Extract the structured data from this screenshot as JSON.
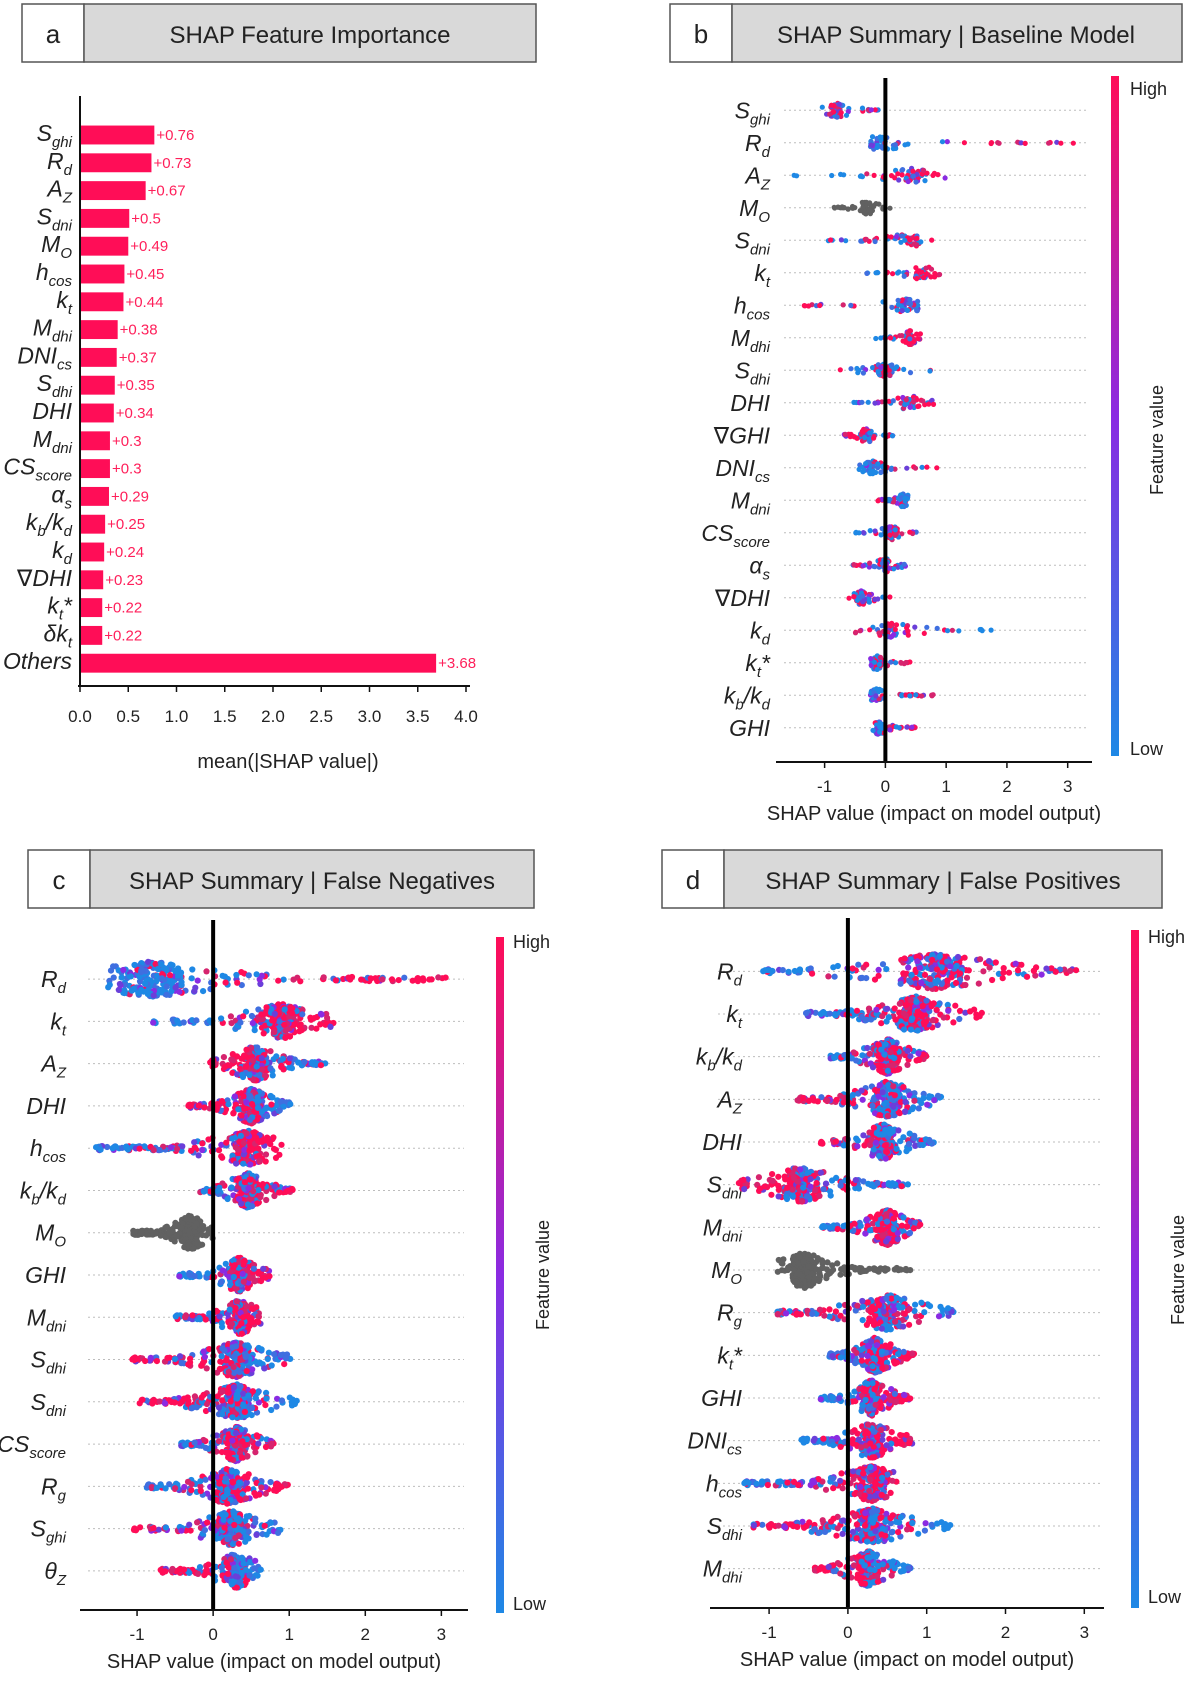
{
  "colors": {
    "bar": "#ff0d57",
    "high": "#ff0d57",
    "low": "#1e88e5",
    "mid": "#8a2be2",
    "missing": "#616161",
    "panel_header_bg": "#d9d9d9"
  },
  "panels": {
    "a": {
      "letter": "a",
      "title": "SHAP Feature Importance"
    },
    "b": {
      "letter": "b",
      "title": "SHAP Summary | Baseline Model"
    },
    "c": {
      "letter": "c",
      "title": "SHAP Summary | False Negatives"
    },
    "d": {
      "letter": "d",
      "title": "SHAP Summary | False Positives"
    }
  },
  "colorbar": {
    "high": "High",
    "low": "Low",
    "label": "Feature value"
  },
  "chart_data": [
    {
      "id": "a",
      "type": "bar",
      "orientation": "horizontal",
      "title": "SHAP Feature Importance",
      "xlabel": "mean(|SHAP value|)",
      "xlim": [
        0.0,
        4.0
      ],
      "xticks": [
        "0.0",
        "0.5",
        "1.0",
        "1.5",
        "2.0",
        "2.5",
        "3.0",
        "3.5",
        "4.0"
      ],
      "categories": [
        {
          "base": "S",
          "sub": "ghi"
        },
        {
          "base": "R",
          "sub": "d"
        },
        {
          "base": "A",
          "sub": "Z"
        },
        {
          "base": "S",
          "sub": "dni"
        },
        {
          "base": "M",
          "sub": "O"
        },
        {
          "base": "h",
          "sub": "cos"
        },
        {
          "base": "k",
          "sub": "t"
        },
        {
          "base": "M",
          "sub": "dhi"
        },
        {
          "base": "DNI",
          "sub": "cs"
        },
        {
          "base": "S",
          "sub": "dhi"
        },
        {
          "base": "DHI",
          "sub": ""
        },
        {
          "base": "M",
          "sub": "dni"
        },
        {
          "base": "CS",
          "sub": "score"
        },
        {
          "base": "α",
          "sub": "s"
        },
        {
          "base": "k",
          "sub": "b",
          "rest": "/k",
          "sub2": "d"
        },
        {
          "base": "k",
          "sub": "d"
        },
        {
          "base": "∇DHI",
          "sub": ""
        },
        {
          "base": "k",
          "sub": "t",
          "rest": "*"
        },
        {
          "base": "δk",
          "sub": "t"
        },
        {
          "base": "Others",
          "sub": ""
        }
      ],
      "values": [
        0.76,
        0.73,
        0.67,
        0.5,
        0.49,
        0.45,
        0.44,
        0.38,
        0.37,
        0.35,
        0.34,
        0.3,
        0.3,
        0.29,
        0.25,
        0.24,
        0.23,
        0.22,
        0.22,
        3.68
      ],
      "value_labels": [
        "+0.76",
        "+0.73",
        "+0.67",
        "+0.5",
        "+0.49",
        "+0.45",
        "+0.44",
        "+0.38",
        "+0.37",
        "+0.35",
        "+0.34",
        "+0.3",
        "+0.3",
        "+0.29",
        "+0.25",
        "+0.24",
        "+0.23",
        "+0.22",
        "+0.22",
        "+3.68"
      ]
    },
    {
      "id": "b",
      "type": "scatter",
      "subtype": "beeswarm",
      "title": "SHAP Summary | Baseline Model",
      "xlabel": "SHAP value (impact on model output)",
      "xlim": [
        -1.8,
        3.4
      ],
      "xticks": [
        -1,
        0,
        1,
        2,
        3
      ],
      "xtick_labels": [
        "-1",
        "0",
        "1",
        "2",
        "3"
      ],
      "density": "sparse",
      "features": [
        {
          "base": "S",
          "sub": "ghi",
          "range": [
            -1.2,
            0.15
          ],
          "center": -0.8,
          "ext": [
            -1.2,
            0.15
          ],
          "low": "right",
          "high": "left"
        },
        {
          "base": "R",
          "sub": "d",
          "range": [
            -0.25,
            3.1
          ],
          "center": -0.05,
          "ext": [
            -0.25,
            3.1
          ],
          "low": "left",
          "high": "right"
        },
        {
          "base": "A",
          "sub": "Z",
          "range": [
            -1.65,
            1.1
          ],
          "center": 0.45,
          "ext": [
            -1.65,
            1.1
          ],
          "low": "mixed",
          "high": "right"
        },
        {
          "base": "M",
          "sub": "O",
          "range": [
            -0.85,
            0.1
          ],
          "center": -0.3,
          "ext": [
            -0.85,
            0.1
          ],
          "missing": true
        },
        {
          "base": "S",
          "sub": "dni",
          "range": [
            -0.95,
            0.9
          ],
          "center": 0.4,
          "ext": [
            -0.95,
            0.9
          ],
          "low": "mixed",
          "high": "right"
        },
        {
          "base": "k",
          "sub": "t",
          "range": [
            -0.4,
            0.9
          ],
          "center": 0.6,
          "ext": [
            -0.4,
            0.9
          ],
          "low": "left",
          "high": "right"
        },
        {
          "base": "h",
          "sub": "cos",
          "range": [
            -1.35,
            0.55
          ],
          "center": 0.35,
          "ext": [
            -1.35,
            0.55
          ],
          "low": "right",
          "high": "left"
        },
        {
          "base": "M",
          "sub": "dhi",
          "range": [
            -0.25,
            0.6
          ],
          "center": 0.4,
          "ext": [
            -0.25,
            0.6
          ],
          "low": "left",
          "high": "right"
        },
        {
          "base": "S",
          "sub": "dhi",
          "range": [
            -0.75,
            0.85
          ],
          "center": 0.0,
          "ext": [
            -0.75,
            0.85
          ],
          "low": "mixed",
          "high": "mixed"
        },
        {
          "base": "DHI",
          "sub": "",
          "range": [
            -0.55,
            0.8
          ],
          "center": 0.4,
          "ext": [
            -0.55,
            0.8
          ],
          "low": "left",
          "high": "right"
        },
        {
          "base": "∇GHI",
          "sub": "",
          "range": [
            -0.7,
            0.2
          ],
          "center": -0.3,
          "ext": [
            -0.7,
            0.2
          ],
          "low": "mixed",
          "high": "mixed"
        },
        {
          "base": "DNI",
          "sub": "cs",
          "range": [
            -0.45,
            0.85
          ],
          "center": -0.2,
          "ext": [
            -0.45,
            0.85
          ],
          "low": "left",
          "high": "right"
        },
        {
          "base": "M",
          "sub": "dni",
          "range": [
            -0.15,
            0.4
          ],
          "center": 0.3,
          "ext": [
            -0.15,
            0.4
          ],
          "low": "right",
          "high": "left"
        },
        {
          "base": "CS",
          "sub": "score",
          "range": [
            -0.5,
            0.65
          ],
          "center": 0.1,
          "ext": [
            -0.5,
            0.65
          ],
          "low": "mixed",
          "high": "right"
        },
        {
          "base": "α",
          "sub": "s",
          "range": [
            -0.55,
            0.35
          ],
          "center": 0.0,
          "ext": [
            -0.55,
            0.35
          ],
          "low": "mixed",
          "high": "left"
        },
        {
          "base": "∇DHI",
          "sub": "",
          "range": [
            -0.7,
            0.2
          ],
          "center": -0.4,
          "ext": [
            -0.7,
            0.2
          ],
          "low": "mixed",
          "high": "mixed"
        },
        {
          "base": "k",
          "sub": "d",
          "range": [
            -0.55,
            1.75
          ],
          "center": 0.1,
          "ext": [
            -0.55,
            1.75
          ],
          "low": "right",
          "high": "mixed"
        },
        {
          "base": "k",
          "sub": "t",
          "rest": "*",
          "range": [
            -0.3,
            0.55
          ],
          "center": -0.15,
          "ext": [
            -0.3,
            0.55
          ],
          "low": "mixed",
          "high": "right"
        },
        {
          "base": "k",
          "sub": "b",
          "rest": "/k",
          "sub2": "d",
          "range": [
            -0.25,
            0.8
          ],
          "center": -0.15,
          "ext": [
            -0.25,
            0.8
          ],
          "low": "left",
          "high": "right"
        },
        {
          "base": "GHI",
          "sub": "",
          "range": [
            -0.25,
            0.5
          ],
          "center": -0.1,
          "ext": [
            -0.25,
            0.5
          ],
          "low": "left",
          "high": "right"
        }
      ]
    },
    {
      "id": "c",
      "type": "scatter",
      "subtype": "beeswarm",
      "title": "SHAP Summary | False Negatives",
      "xlabel": "SHAP value (impact on model output)",
      "xlim": [
        -1.75,
        3.35
      ],
      "xticks": [
        -1,
        0,
        1,
        2,
        3
      ],
      "xtick_labels": [
        "-1",
        "0",
        "1",
        "2",
        "3"
      ],
      "density": "dense",
      "features": [
        {
          "base": "R",
          "sub": "d",
          "range": [
            -1.45,
            3.1
          ],
          "center": -0.8,
          "ext": [
            -1.45,
            3.1
          ],
          "low": "left",
          "high": "right"
        },
        {
          "base": "k",
          "sub": "t",
          "range": [
            -0.8,
            1.6
          ],
          "center": 0.9,
          "ext": [
            -0.8,
            1.6
          ],
          "low": "left",
          "high": "right"
        },
        {
          "base": "A",
          "sub": "Z",
          "range": [
            -0.05,
            1.5
          ],
          "center": 0.55,
          "ext": [
            -0.05,
            1.5
          ],
          "low": "right",
          "high": "left"
        },
        {
          "base": "DHI",
          "sub": "",
          "range": [
            -0.35,
            1.05
          ],
          "center": 0.5,
          "ext": [
            -0.35,
            1.05
          ],
          "low": "right",
          "high": "left"
        },
        {
          "base": "h",
          "sub": "cos",
          "range": [
            -1.6,
            0.9
          ],
          "center": 0.45,
          "ext": [
            -1.6,
            0.9
          ],
          "low": "left",
          "high": "right"
        },
        {
          "base": "k",
          "sub": "b",
          "rest": "/k",
          "sub2": "d",
          "range": [
            -0.2,
            1.05
          ],
          "center": 0.45,
          "ext": [
            -0.2,
            1.05
          ],
          "low": "left",
          "high": "mixed"
        },
        {
          "base": "M",
          "sub": "O",
          "range": [
            -1.05,
            0.0
          ],
          "center": -0.3,
          "ext": [
            -1.05,
            0.0
          ],
          "missing": true
        },
        {
          "base": "GHI",
          "sub": "",
          "range": [
            -0.45,
            0.75
          ],
          "center": 0.35,
          "ext": [
            -0.45,
            0.75
          ],
          "low": "left",
          "high": "right"
        },
        {
          "base": "M",
          "sub": "dni",
          "range": [
            -0.5,
            0.65
          ],
          "center": 0.35,
          "ext": [
            -0.5,
            0.65
          ],
          "low": "left",
          "high": "mixed"
        },
        {
          "base": "S",
          "sub": "dhi",
          "range": [
            -1.1,
            1.05
          ],
          "center": 0.3,
          "ext": [
            -1.1,
            1.05
          ],
          "low": "right",
          "high": "left"
        },
        {
          "base": "S",
          "sub": "dni",
          "range": [
            -1.05,
            1.1
          ],
          "center": 0.3,
          "ext": [
            -1.05,
            1.1
          ],
          "low": "right",
          "high": "left"
        },
        {
          "base": "CS",
          "sub": "score",
          "range": [
            -0.45,
            0.8
          ],
          "center": 0.3,
          "ext": [
            -0.45,
            0.8
          ],
          "low": "left",
          "high": "right"
        },
        {
          "base": "R",
          "sub": "g",
          "range": [
            -0.9,
            1.0
          ],
          "center": 0.2,
          "ext": [
            -0.9,
            1.0
          ],
          "low": "left",
          "high": "mixed"
        },
        {
          "base": "S",
          "sub": "ghi",
          "range": [
            -1.05,
            0.9
          ],
          "center": 0.25,
          "ext": [
            -1.05,
            0.9
          ],
          "low": "right",
          "high": "left"
        },
        {
          "base": "θ",
          "sub": "Z",
          "range": [
            -0.7,
            0.65
          ],
          "center": 0.3,
          "ext": [
            -0.7,
            0.65
          ],
          "low": "right",
          "high": "left"
        }
      ]
    },
    {
      "id": "d",
      "type": "scatter",
      "subtype": "beeswarm",
      "title": "SHAP Summary | False Positives",
      "xlabel": "SHAP value (impact on model output)",
      "xlim": [
        -1.75,
        3.25
      ],
      "xticks": [
        -1,
        0,
        1,
        2,
        3
      ],
      "xtick_labels": [
        "-1",
        "0",
        "1",
        "2",
        "3"
      ],
      "density": "dense",
      "features": [
        {
          "base": "R",
          "sub": "d",
          "range": [
            -1.15,
            3.0
          ],
          "center": 1.1,
          "ext": [
            -1.15,
            3.0
          ],
          "low": "left",
          "high": "right"
        },
        {
          "base": "k",
          "sub": "t",
          "range": [
            -0.6,
            1.7
          ],
          "center": 0.85,
          "ext": [
            -0.6,
            1.7
          ],
          "low": "left",
          "high": "right"
        },
        {
          "base": "k",
          "sub": "b",
          "rest": "/k",
          "sub2": "d",
          "range": [
            -0.25,
            1.0
          ],
          "center": 0.5,
          "ext": [
            -0.25,
            1.0
          ],
          "low": "left",
          "high": "right"
        },
        {
          "base": "A",
          "sub": "Z",
          "range": [
            -0.65,
            1.2
          ],
          "center": 0.5,
          "ext": [
            -0.65,
            1.2
          ],
          "low": "right",
          "high": "left"
        },
        {
          "base": "DHI",
          "sub": "",
          "range": [
            -0.35,
            1.1
          ],
          "center": 0.45,
          "ext": [
            -0.35,
            1.1
          ],
          "low": "right",
          "high": "left"
        },
        {
          "base": "S",
          "sub": "dni",
          "range": [
            -1.4,
            0.8
          ],
          "center": -0.6,
          "ext": [
            -1.4,
            0.8
          ],
          "low": "right",
          "high": "left"
        },
        {
          "base": "M",
          "sub": "dni",
          "range": [
            -0.35,
            0.95
          ],
          "center": 0.5,
          "ext": [
            -0.35,
            0.95
          ],
          "low": "left",
          "high": "right"
        },
        {
          "base": "M",
          "sub": "O",
          "range": [
            -0.9,
            0.8
          ],
          "center": -0.55,
          "ext": [
            -0.9,
            0.8
          ],
          "missing": true
        },
        {
          "base": "R",
          "sub": "g",
          "range": [
            -0.95,
            1.35
          ],
          "center": 0.5,
          "ext": [
            -0.95,
            1.35
          ],
          "low": "mixed",
          "high": "left"
        },
        {
          "base": "k",
          "sub": "t",
          "rest": "*",
          "range": [
            -0.25,
            0.85
          ],
          "center": 0.35,
          "ext": [
            -0.25,
            0.85
          ],
          "low": "left",
          "high": "right"
        },
        {
          "base": "GHI",
          "sub": "",
          "range": [
            -0.35,
            0.8
          ],
          "center": 0.3,
          "ext": [
            -0.35,
            0.8
          ],
          "low": "left",
          "high": "right"
        },
        {
          "base": "DNI",
          "sub": "cs",
          "range": [
            -0.6,
            0.85
          ],
          "center": 0.3,
          "ext": [
            -0.6,
            0.85
          ],
          "low": "left",
          "high": "right"
        },
        {
          "base": "h",
          "sub": "cos",
          "range": [
            -1.35,
            0.65
          ],
          "center": 0.3,
          "ext": [
            -1.35,
            0.65
          ],
          "low": "left",
          "high": "right"
        },
        {
          "base": "S",
          "sub": "dhi",
          "range": [
            -1.3,
            1.3
          ],
          "center": 0.3,
          "ext": [
            -1.3,
            1.3
          ],
          "low": "right",
          "high": "left"
        },
        {
          "base": "M",
          "sub": "dhi",
          "range": [
            -0.45,
            0.8
          ],
          "center": 0.25,
          "ext": [
            -0.45,
            0.8
          ],
          "low": "right",
          "high": "left"
        }
      ]
    }
  ]
}
